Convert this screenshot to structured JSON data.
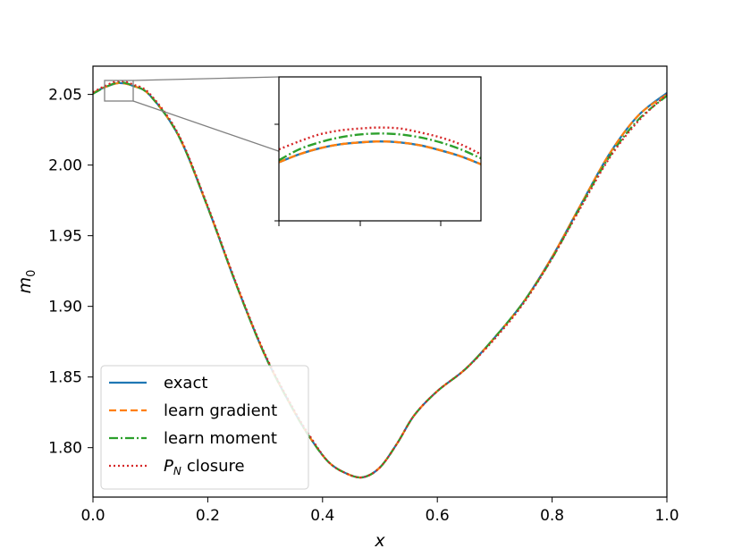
{
  "chart_data": {
    "type": "line",
    "xlabel": "x",
    "ylabel": "m",
    "ylabel_subscript": "0",
    "xlim": [
      0.0,
      1.0
    ],
    "ylim": [
      1.765,
      2.07
    ],
    "xticks": [
      0.0,
      0.2,
      0.4,
      0.6,
      0.8,
      1.0
    ],
    "xtick_labels": [
      "0.0",
      "0.2",
      "0.4",
      "0.6",
      "0.8",
      "1.0"
    ],
    "yticks": [
      1.8,
      1.85,
      1.9,
      1.95,
      2.0,
      2.05
    ],
    "ytick_labels": [
      "1.80",
      "1.85",
      "1.90",
      "1.95",
      "2.00",
      "2.05"
    ],
    "grid": false,
    "legend_position": "lower-left",
    "x": [
      0.0,
      0.02,
      0.045,
      0.07,
      0.1,
      0.15,
      0.2,
      0.25,
      0.3,
      0.35,
      0.38,
      0.41,
      0.44,
      0.47,
      0.5,
      0.53,
      0.56,
      0.6,
      0.65,
      0.7,
      0.75,
      0.8,
      0.85,
      0.9,
      0.95,
      1.0
    ],
    "series": [
      {
        "name": "exact",
        "color": "#1f77b4",
        "dash": "solid",
        "values": [
          2.051,
          2.055,
          2.058,
          2.056,
          2.049,
          2.02,
          1.97,
          1.915,
          1.865,
          1.826,
          1.806,
          1.79,
          1.782,
          1.779,
          1.786,
          1.803,
          1.823,
          1.84,
          1.856,
          1.878,
          1.903,
          1.935,
          1.972,
          2.008,
          2.035,
          2.051
        ]
      },
      {
        "name": "learn gradient",
        "color": "#ff7f0e",
        "dash": "dashed",
        "values": [
          2.051,
          2.055,
          2.058,
          2.056,
          2.049,
          2.02,
          1.97,
          1.915,
          1.865,
          1.826,
          1.806,
          1.79,
          1.782,
          1.779,
          1.786,
          1.803,
          1.823,
          1.84,
          1.856,
          1.878,
          1.903,
          1.935,
          1.972,
          2.008,
          2.035,
          2.05
        ]
      },
      {
        "name": "learn moment",
        "color": "#2ca02c",
        "dash": "dashdot",
        "values": [
          2.0505,
          2.0548,
          2.0585,
          2.0562,
          2.049,
          2.02,
          1.97,
          1.915,
          1.865,
          1.826,
          1.806,
          1.79,
          1.782,
          1.779,
          1.786,
          1.803,
          1.823,
          1.84,
          1.856,
          1.878,
          1.903,
          1.934,
          1.971,
          2.006,
          2.032,
          2.049
        ]
      },
      {
        "name": "closure",
        "name_prefix": "P",
        "name_subscript": "N",
        "color": "#d62728",
        "dash": "dotted",
        "values": [
          2.0515,
          2.0558,
          2.0595,
          2.057,
          2.05,
          2.021,
          1.971,
          1.916,
          1.866,
          1.827,
          1.807,
          1.79,
          1.782,
          1.779,
          1.786,
          1.803,
          1.823,
          1.84,
          1.856,
          1.877,
          1.902,
          1.934,
          1.97,
          2.005,
          2.031,
          2.05
        ]
      }
    ],
    "inset": {
      "xlim": [
        0.02,
        0.07
      ],
      "ylim": [
        2.05,
        2.0645
      ],
      "series_values": {
        "x": [
          0.02,
          0.025,
          0.03,
          0.035,
          0.04,
          0.045,
          0.05,
          0.055,
          0.06,
          0.065,
          0.07
        ],
        "exact": [
          2.0559,
          2.0567,
          2.0573,
          2.0577,
          2.0579,
          2.058,
          2.0579,
          2.0576,
          2.0571,
          2.0565,
          2.0557
        ],
        "learn gradient": [
          2.0559,
          2.0567,
          2.0573,
          2.0577,
          2.0579,
          2.058,
          2.0579,
          2.0576,
          2.0571,
          2.0565,
          2.0557
        ],
        "learn moment": [
          2.0561,
          2.0572,
          2.0579,
          2.0584,
          2.0587,
          2.0588,
          2.0587,
          2.0584,
          2.0579,
          2.0572,
          2.0563
        ],
        "closure": [
          2.0572,
          2.058,
          2.0587,
          2.0591,
          2.0593,
          2.0594,
          2.0593,
          2.0589,
          2.0584,
          2.0577,
          2.0567
        ]
      }
    }
  }
}
